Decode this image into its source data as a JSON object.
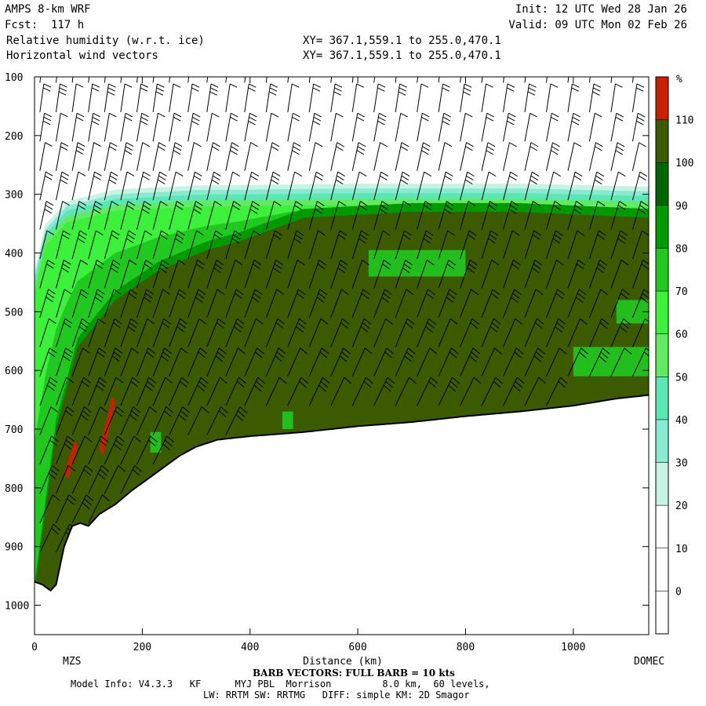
{
  "header": {
    "model": "AMPS 8-km WRF",
    "forecast": "Fcst:  117 h",
    "init": "Init: 12 UTC Wed 28 Jan 26",
    "valid": "Valid: 09 UTC Mon 02 Feb 26",
    "field1": "Relative humidity (w.r.t. ice)",
    "field2": "Horizontal wind vectors",
    "xy1": "XY= 367.1,559.1 to 255.0,470.1",
    "xy2": "XY= 367.1,559.1 to 255.0,470.1"
  },
  "footer": {
    "barb": "BARB VECTORS: FULL BARB = 10 kts",
    "model_info": "Model Info: V4.3.3   KF      MYJ PBL  Morrison         8.0 km,  60 levels,",
    "physics": "LW: RRTM SW: RRTMG   DIFF: simple KM: 2D Smagor"
  },
  "colors": {
    "c30": "#c6f3e3",
    "c40": "#88ead0",
    "c50": "#5ce6b4",
    "c60": "#62ea62",
    "c70": "#3cf03c",
    "c80": "#20c820",
    "c90": "#009a00",
    "c100": "#006600",
    "c110": "#3c5a00",
    "c_over": "#c82000",
    "terrain_line": "#000000"
  },
  "chart_data": {
    "type": "heatmap",
    "title": "Relative humidity (w.r.t. ice)",
    "subtitle": "Horizontal wind vectors",
    "xlabel": "Distance (km)",
    "ylabel": "",
    "xlim": [
      0,
      1140
    ],
    "ylim": [
      1050,
      100
    ],
    "x_ticks": [
      0,
      200,
      400,
      600,
      800,
      1000
    ],
    "y_ticks": [
      100,
      200,
      300,
      400,
      500,
      600,
      700,
      800,
      900,
      1000
    ],
    "endpoints": {
      "left": "MZS",
      "right": "DOMEC"
    },
    "colorbar": {
      "unit": "%",
      "levels": [
        0,
        10,
        20,
        30,
        40,
        50,
        60,
        70,
        80,
        90,
        100,
        110
      ],
      "bands": [
        {
          "from": 110,
          "to": 120,
          "color": "#c82000"
        },
        {
          "from": 100,
          "to": 110,
          "color": "#3c5a00"
        },
        {
          "from": 90,
          "to": 100,
          "color": "#006600"
        },
        {
          "from": 80,
          "to": 90,
          "color": "#009a00"
        },
        {
          "from": 70,
          "to": 80,
          "color": "#20c820"
        },
        {
          "from": 60,
          "to": 70,
          "color": "#3cf03c"
        },
        {
          "from": 50,
          "to": 60,
          "color": "#62ea62"
        },
        {
          "from": 40,
          "to": 50,
          "color": "#5ce6b4"
        },
        {
          "from": 30,
          "to": 40,
          "color": "#88ead0"
        },
        {
          "from": 20,
          "to": 30,
          "color": "#c6f3e3"
        },
        {
          "from": 10,
          "to": 20,
          "color": "#ffffff"
        },
        {
          "from": 0,
          "to": 10,
          "color": "#ffffff"
        },
        {
          "from": -10,
          "to": 0,
          "color": "#ffffff"
        }
      ]
    },
    "terrain": [
      {
        "x": 0,
        "p": 960
      },
      {
        "x": 15,
        "p": 965
      },
      {
        "x": 30,
        "p": 975
      },
      {
        "x": 40,
        "p": 965
      },
      {
        "x": 55,
        "p": 900
      },
      {
        "x": 70,
        "p": 865
      },
      {
        "x": 85,
        "p": 860
      },
      {
        "x": 100,
        "p": 865
      },
      {
        "x": 120,
        "p": 845
      },
      {
        "x": 150,
        "p": 828
      },
      {
        "x": 180,
        "p": 805
      },
      {
        "x": 210,
        "p": 785
      },
      {
        "x": 240,
        "p": 765
      },
      {
        "x": 270,
        "p": 745
      },
      {
        "x": 300,
        "p": 730
      },
      {
        "x": 340,
        "p": 718
      },
      {
        "x": 400,
        "p": 712
      },
      {
        "x": 500,
        "p": 705
      },
      {
        "x": 600,
        "p": 695
      },
      {
        "x": 700,
        "p": 688
      },
      {
        "x": 800,
        "p": 678
      },
      {
        "x": 900,
        "p": 670
      },
      {
        "x": 1000,
        "p": 660
      },
      {
        "x": 1080,
        "p": 648
      },
      {
        "x": 1140,
        "p": 642
      }
    ],
    "moist_layer_top": [
      {
        "x": 0,
        "p": 440
      },
      {
        "x": 20,
        "p": 360
      },
      {
        "x": 60,
        "p": 320
      },
      {
        "x": 150,
        "p": 300
      },
      {
        "x": 300,
        "p": 293
      },
      {
        "x": 600,
        "p": 290
      },
      {
        "x": 900,
        "p": 290
      },
      {
        "x": 1140,
        "p": 295
      }
    ],
    "saturated_core_top": [
      {
        "x": 0,
        "p": 980
      },
      {
        "x": 40,
        "p": 700
      },
      {
        "x": 80,
        "p": 560
      },
      {
        "x": 150,
        "p": 480
      },
      {
        "x": 230,
        "p": 430
      },
      {
        "x": 320,
        "p": 395
      },
      {
        "x": 380,
        "p": 380
      },
      {
        "x": 500,
        "p": 340
      },
      {
        "x": 700,
        "p": 330
      },
      {
        "x": 900,
        "p": 330
      },
      {
        "x": 1140,
        "p": 340
      }
    ],
    "supersaturated_patches": [
      {
        "x": [
          55,
          80
        ],
        "p": [
          720,
          785
        ]
      },
      {
        "x": [
          120,
          150
        ],
        "p": [
          645,
          745
        ]
      }
    ],
    "barb_columns_km": [
      10,
      40,
      70,
      100,
      130,
      160,
      190,
      220,
      250,
      285,
      320,
      355,
      390,
      430,
      470,
      510,
      550,
      590,
      630,
      670,
      710,
      750,
      790,
      830,
      870,
      910,
      950,
      990,
      1030,
      1070,
      1110
    ],
    "barb_levels_hpa": [
      110,
      160,
      210,
      260,
      310,
      360,
      410,
      460,
      510,
      560,
      610,
      660,
      710,
      760,
      810,
      860,
      910
    ]
  }
}
